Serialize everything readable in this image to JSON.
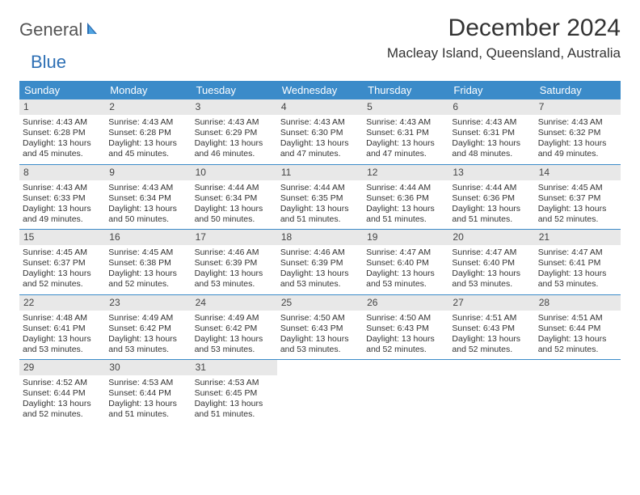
{
  "logo": {
    "part1": "General",
    "part2": "Blue"
  },
  "title": "December 2024",
  "subtitle": "Macleay Island, Queensland, Australia",
  "colors": {
    "header_bg": "#3b8bc9",
    "header_text": "#ffffff",
    "daynum_bg": "#e8e8e8",
    "week_divider": "#3b8bc9",
    "brand_blue": "#2d6fb4",
    "brand_grey": "#555555"
  },
  "day_names": [
    "Sunday",
    "Monday",
    "Tuesday",
    "Wednesday",
    "Thursday",
    "Friday",
    "Saturday"
  ],
  "weeks": [
    [
      {
        "n": "1",
        "sr": "4:43 AM",
        "ss": "6:28 PM",
        "dl": "13 hours and 45 minutes."
      },
      {
        "n": "2",
        "sr": "4:43 AM",
        "ss": "6:28 PM",
        "dl": "13 hours and 45 minutes."
      },
      {
        "n": "3",
        "sr": "4:43 AM",
        "ss": "6:29 PM",
        "dl": "13 hours and 46 minutes."
      },
      {
        "n": "4",
        "sr": "4:43 AM",
        "ss": "6:30 PM",
        "dl": "13 hours and 47 minutes."
      },
      {
        "n": "5",
        "sr": "4:43 AM",
        "ss": "6:31 PM",
        "dl": "13 hours and 47 minutes."
      },
      {
        "n": "6",
        "sr": "4:43 AM",
        "ss": "6:31 PM",
        "dl": "13 hours and 48 minutes."
      },
      {
        "n": "7",
        "sr": "4:43 AM",
        "ss": "6:32 PM",
        "dl": "13 hours and 49 minutes."
      }
    ],
    [
      {
        "n": "8",
        "sr": "4:43 AM",
        "ss": "6:33 PM",
        "dl": "13 hours and 49 minutes."
      },
      {
        "n": "9",
        "sr": "4:43 AM",
        "ss": "6:34 PM",
        "dl": "13 hours and 50 minutes."
      },
      {
        "n": "10",
        "sr": "4:44 AM",
        "ss": "6:34 PM",
        "dl": "13 hours and 50 minutes."
      },
      {
        "n": "11",
        "sr": "4:44 AM",
        "ss": "6:35 PM",
        "dl": "13 hours and 51 minutes."
      },
      {
        "n": "12",
        "sr": "4:44 AM",
        "ss": "6:36 PM",
        "dl": "13 hours and 51 minutes."
      },
      {
        "n": "13",
        "sr": "4:44 AM",
        "ss": "6:36 PM",
        "dl": "13 hours and 51 minutes."
      },
      {
        "n": "14",
        "sr": "4:45 AM",
        "ss": "6:37 PM",
        "dl": "13 hours and 52 minutes."
      }
    ],
    [
      {
        "n": "15",
        "sr": "4:45 AM",
        "ss": "6:37 PM",
        "dl": "13 hours and 52 minutes."
      },
      {
        "n": "16",
        "sr": "4:45 AM",
        "ss": "6:38 PM",
        "dl": "13 hours and 52 minutes."
      },
      {
        "n": "17",
        "sr": "4:46 AM",
        "ss": "6:39 PM",
        "dl": "13 hours and 53 minutes."
      },
      {
        "n": "18",
        "sr": "4:46 AM",
        "ss": "6:39 PM",
        "dl": "13 hours and 53 minutes."
      },
      {
        "n": "19",
        "sr": "4:47 AM",
        "ss": "6:40 PM",
        "dl": "13 hours and 53 minutes."
      },
      {
        "n": "20",
        "sr": "4:47 AM",
        "ss": "6:40 PM",
        "dl": "13 hours and 53 minutes."
      },
      {
        "n": "21",
        "sr": "4:47 AM",
        "ss": "6:41 PM",
        "dl": "13 hours and 53 minutes."
      }
    ],
    [
      {
        "n": "22",
        "sr": "4:48 AM",
        "ss": "6:41 PM",
        "dl": "13 hours and 53 minutes."
      },
      {
        "n": "23",
        "sr": "4:49 AM",
        "ss": "6:42 PM",
        "dl": "13 hours and 53 minutes."
      },
      {
        "n": "24",
        "sr": "4:49 AM",
        "ss": "6:42 PM",
        "dl": "13 hours and 53 minutes."
      },
      {
        "n": "25",
        "sr": "4:50 AM",
        "ss": "6:43 PM",
        "dl": "13 hours and 53 minutes."
      },
      {
        "n": "26",
        "sr": "4:50 AM",
        "ss": "6:43 PM",
        "dl": "13 hours and 52 minutes."
      },
      {
        "n": "27",
        "sr": "4:51 AM",
        "ss": "6:43 PM",
        "dl": "13 hours and 52 minutes."
      },
      {
        "n": "28",
        "sr": "4:51 AM",
        "ss": "6:44 PM",
        "dl": "13 hours and 52 minutes."
      }
    ],
    [
      {
        "n": "29",
        "sr": "4:52 AM",
        "ss": "6:44 PM",
        "dl": "13 hours and 52 minutes."
      },
      {
        "n": "30",
        "sr": "4:53 AM",
        "ss": "6:44 PM",
        "dl": "13 hours and 51 minutes."
      },
      {
        "n": "31",
        "sr": "4:53 AM",
        "ss": "6:45 PM",
        "dl": "13 hours and 51 minutes."
      },
      null,
      null,
      null,
      null
    ]
  ],
  "labels": {
    "sunrise": "Sunrise:",
    "sunset": "Sunset:",
    "daylight": "Daylight:"
  }
}
